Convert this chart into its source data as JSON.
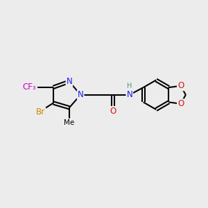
{
  "background_color": "#ececec",
  "bond_color": "#000000",
  "line_width": 1.5,
  "atom_colors": {
    "N": "#1a1aee",
    "O": "#dd1111",
    "F": "#cc00cc",
    "Br": "#cc8800",
    "H": "#4a9090",
    "C": "#000000"
  },
  "font_size": 8.5,
  "figsize": [
    3.0,
    3.0
  ],
  "dpi": 100
}
